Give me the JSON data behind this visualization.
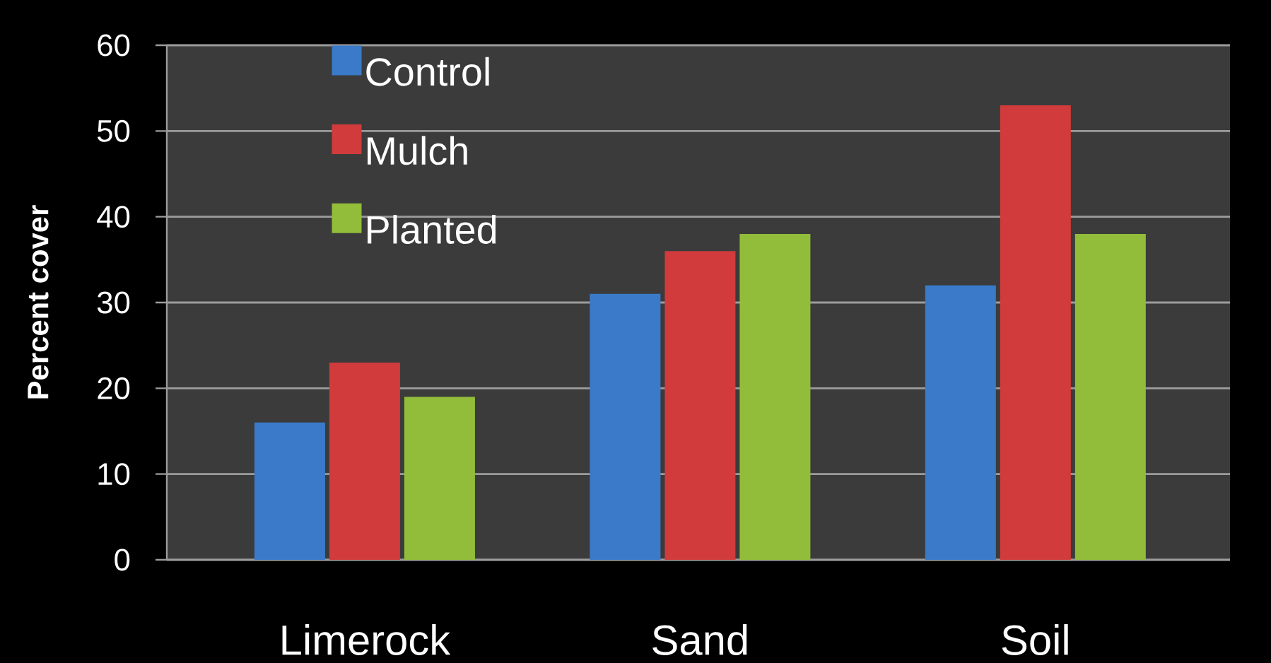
{
  "chart_data": {
    "type": "bar",
    "ylabel": "Percent cover",
    "categories": [
      "Limerock",
      "Sand",
      "Soil"
    ],
    "series": [
      {
        "name": "Control",
        "color": "#3a7ac9",
        "values": [
          16,
          31,
          32
        ]
      },
      {
        "name": "Mulch",
        "color": "#d13b3b",
        "values": [
          23,
          36,
          53
        ]
      },
      {
        "name": "Planted",
        "color": "#92bd3a",
        "values": [
          19,
          38,
          38
        ]
      }
    ],
    "ylim": [
      0,
      60
    ],
    "yticks": [
      0,
      10,
      20,
      30,
      40,
      50,
      60
    ],
    "grid": "y",
    "legend": "top left"
  }
}
